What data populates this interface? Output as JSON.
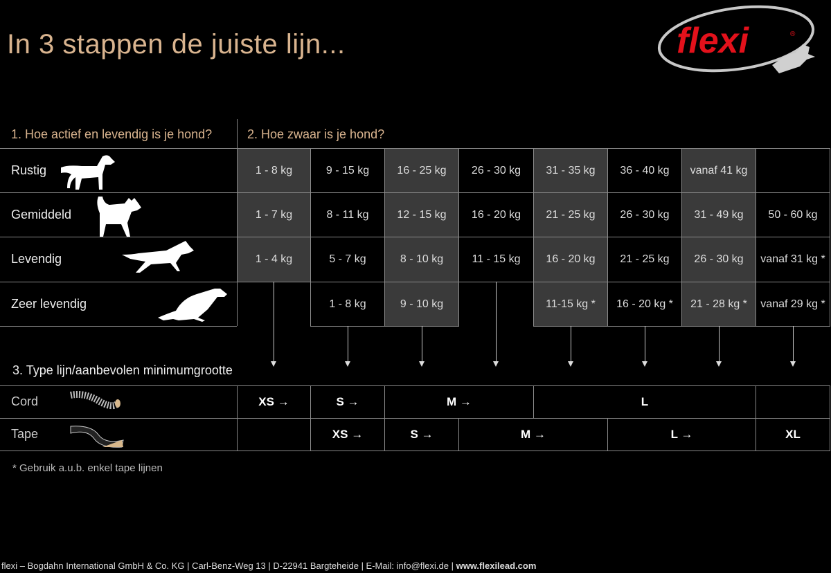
{
  "title": "In 3 stappen de juiste lijn...",
  "logo": {
    "text": "flexi",
    "registered": "®",
    "colors": {
      "red": "#e3111b",
      "silver": "#c8c8c8"
    }
  },
  "step1_label": "1. Hoe actief en levendig is je hond?",
  "step2_label": "2. Hoe zwaar is je hond?",
  "step3_label": "3. Type lijn/aanbevolen minimumgrootte",
  "colors": {
    "accent_text": "#d9b48f",
    "shaded_cell": "#3a3a3a",
    "grid": "#8a8a8a"
  },
  "activity_rows": [
    {
      "label": "Rustig",
      "icon": "standing-dog-icon",
      "cells": [
        {
          "text": "1 - 8 kg",
          "shade": true
        },
        {
          "text": "9 - 15 kg"
        },
        {
          "text": "16 - 25 kg",
          "shade": true
        },
        {
          "text": "26 - 30 kg"
        },
        {
          "text": "31 - 35 kg",
          "shade": true
        },
        {
          "text": "36 - 40 kg"
        },
        {
          "text": "vanaf 41 kg",
          "shade": true
        },
        {
          "text": ""
        }
      ]
    },
    {
      "label": "Gemiddeld",
      "icon": "walking-dog-icon",
      "cells": [
        {
          "text": "1 - 7 kg",
          "shade": true
        },
        {
          "text": "8 - 11 kg"
        },
        {
          "text": "12 - 15 kg",
          "shade": true
        },
        {
          "text": "16 - 20 kg"
        },
        {
          "text": "21 - 25 kg",
          "shade": true
        },
        {
          "text": "26 - 30 kg"
        },
        {
          "text": "31 - 49 kg",
          "shade": true
        },
        {
          "text": "50 - 60 kg"
        }
      ]
    },
    {
      "label": "Levendig",
      "icon": "running-dog-icon",
      "cells": [
        {
          "text": "1 - 4 kg",
          "shade": true
        },
        {
          "text": "5 - 7 kg"
        },
        {
          "text": "8 - 10 kg",
          "shade": true
        },
        {
          "text": "11 - 15 kg"
        },
        {
          "text": "16 - 20 kg",
          "shade": true
        },
        {
          "text": "21 - 25 kg"
        },
        {
          "text": "26 - 30 kg",
          "shade": true
        },
        {
          "text": "vanaf 31 kg *"
        }
      ]
    },
    {
      "label": "Zeer levendig",
      "icon": "sprinting-dog-icon",
      "cells": [
        {
          "text": "",
          "blank": true
        },
        {
          "text": "1 - 8 kg"
        },
        {
          "text": "9 - 10 kg",
          "shade": true
        },
        {
          "text": "",
          "blank": true
        },
        {
          "text": "11-15 kg *",
          "shade": true
        },
        {
          "text": "16 - 20 kg *"
        },
        {
          "text": "21 - 28 kg *",
          "shade": true
        },
        {
          "text": "vanaf 29 kg *"
        }
      ]
    }
  ],
  "leash_rows": [
    {
      "label": "Cord",
      "icon": "cord-icon",
      "cells": [
        {
          "text": "XS →",
          "span": 1
        },
        {
          "text": "S →",
          "span": 1
        },
        {
          "text": "M →",
          "span": 2
        },
        {
          "text": "L",
          "span": 3
        },
        {
          "text": "",
          "span": 1
        }
      ]
    },
    {
      "label": "Tape",
      "icon": "tape-icon",
      "cells": [
        {
          "text": "",
          "span": 1
        },
        {
          "text": "XS →",
          "span": 1
        },
        {
          "text": "S →",
          "span": 1
        },
        {
          "text": "M →",
          "span": 2
        },
        {
          "text": "L →",
          "span": 2
        },
        {
          "text": "XL",
          "span": 1
        }
      ]
    }
  ],
  "footnote": "* Gebruik a.u.b. enkel tape lijnen",
  "footer": {
    "text": "flexi – Bogdahn International GmbH & Co. KG | Carl-Benz-Weg 13 | D-22941 Bargteheide | E-Mail: info@flexi.de | ",
    "website": "www.flexilead.com"
  }
}
